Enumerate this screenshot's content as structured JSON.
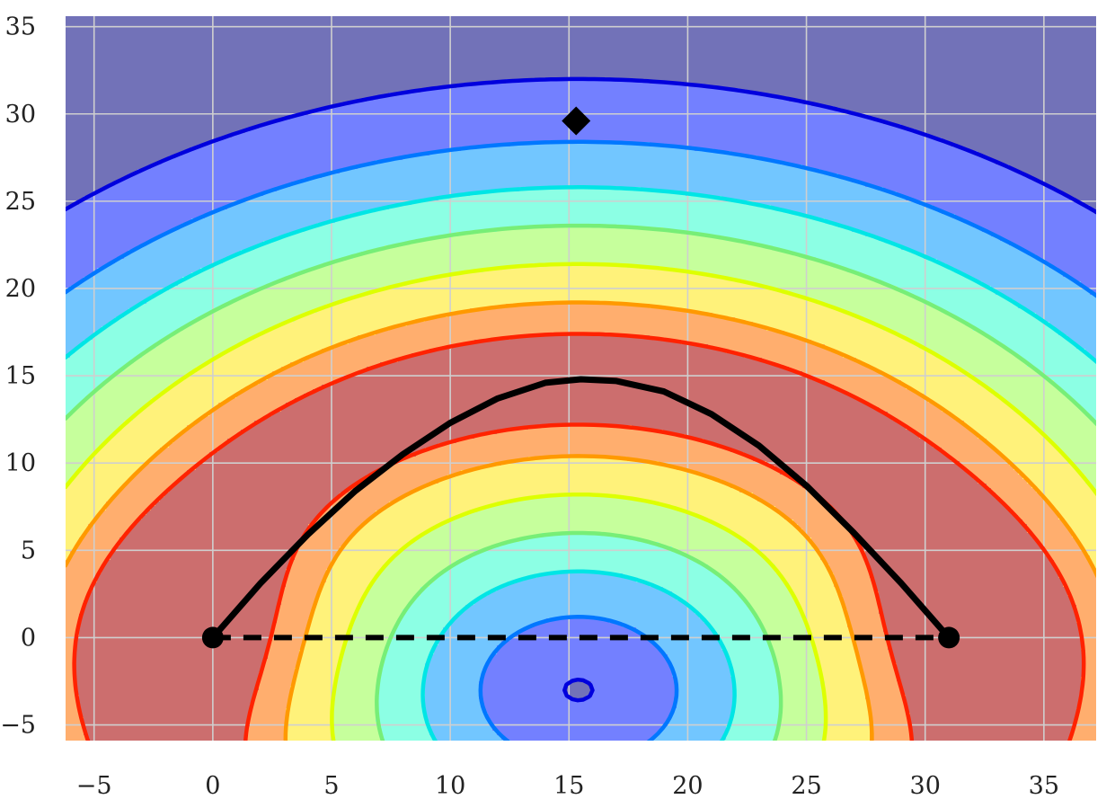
{
  "chart_data": {
    "type": "contour",
    "title": "",
    "xlabel": "",
    "ylabel": "",
    "xlim": [
      -6.2,
      37.2
    ],
    "ylim": [
      -5.9,
      35.6
    ],
    "x_ticks": [
      -5,
      0,
      5,
      10,
      15,
      20,
      25,
      30,
      35
    ],
    "y_ticks": [
      -5,
      0,
      5,
      10,
      15,
      20,
      25,
      30,
      35
    ],
    "x_tick_labels": [
      "−5",
      "0",
      "5",
      "10",
      "15",
      "20",
      "25",
      "30",
      "35"
    ],
    "y_tick_labels": [
      "−5",
      "0",
      "5",
      "10",
      "15",
      "20",
      "25",
      "30",
      "35"
    ],
    "grid": true,
    "colormap": "jet",
    "field": {
      "center": [
        15.4,
        -3
      ],
      "ring_radius": 17.8,
      "endpoint_a": [
        0,
        0
      ],
      "endpoint_b": [
        31,
        0
      ]
    },
    "levels": [
      {
        "band": 1,
        "fill": "#cc6e6e",
        "line": "#ff2200"
      },
      {
        "band": 2,
        "fill": "#ffae6e",
        "line": "#ff9900"
      },
      {
        "band": 3,
        "fill": "#fff27a",
        "line": "#ddff00"
      },
      {
        "band": 4,
        "fill": "#c6ff9c",
        "line": "#77ee77"
      },
      {
        "band": 5,
        "fill": "#8cffe4",
        "line": "#00e5e5"
      },
      {
        "band": 6,
        "fill": "#72c6ff",
        "line": "#0077ff"
      },
      {
        "band": 7,
        "fill": "#7380ff",
        "line": "#0000dd"
      },
      {
        "band": 8,
        "fill": "#7272b8",
        "line": null
      }
    ],
    "series": [
      {
        "kind": "curve",
        "style": "solid",
        "color": "#000000",
        "x": [
          0,
          2,
          4,
          6,
          8,
          10,
          12,
          14,
          15.5,
          17,
          19,
          21,
          23,
          25,
          27,
          29,
          31
        ],
        "y": [
          0,
          3.1,
          5.9,
          8.4,
          10.5,
          12.3,
          13.7,
          14.6,
          14.8,
          14.7,
          14.1,
          12.8,
          11.0,
          8.7,
          6.0,
          3.1,
          0
        ]
      },
      {
        "kind": "line",
        "style": "dashed",
        "color": "#000000",
        "x": [
          0,
          31
        ],
        "y": [
          0,
          0
        ]
      },
      {
        "kind": "points",
        "marker": "circle",
        "color": "#000000",
        "x": [
          0,
          31
        ],
        "y": [
          0,
          0
        ]
      },
      {
        "kind": "points",
        "marker": "diamond",
        "color": "#000000",
        "x": [
          15.3
        ],
        "y": [
          29.6
        ]
      }
    ]
  }
}
